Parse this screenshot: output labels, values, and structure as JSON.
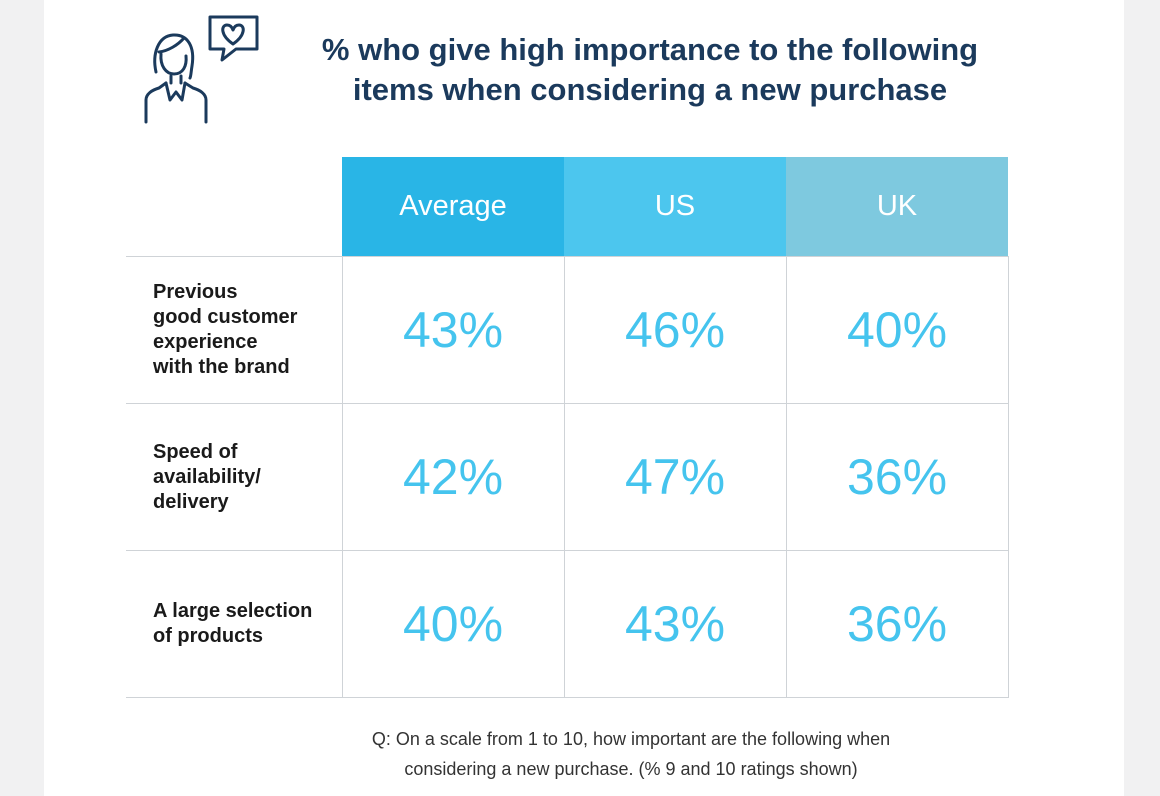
{
  "title_lines": [
    "% who give high importance to the following",
    "items when considering a new purchase"
  ],
  "icon": "person-with-heart-speech-bubble-icon",
  "colors": {
    "title": "#1b3a5c",
    "average_header": "#29b5e6",
    "us_header": "#4cc6ee",
    "uk_header": "#7ec9df",
    "value_text": "#45c4ee",
    "grid_line": "#cfd3d7"
  },
  "chart_data": {
    "type": "table",
    "columns": [
      "Average",
      "US",
      "UK"
    ],
    "rows": [
      {
        "label_lines": [
          "Previous",
          "good customer",
          "experience",
          "with the brand"
        ],
        "values": [
          "43%",
          "46%",
          "40%"
        ]
      },
      {
        "label_lines": [
          "Speed of",
          "availability/",
          "delivery"
        ],
        "values": [
          "42%",
          "47%",
          "36%"
        ]
      },
      {
        "label_lines": [
          "A large selection",
          "of products"
        ],
        "values": [
          "40%",
          "43%",
          "36%"
        ]
      }
    ],
    "unit": "%"
  },
  "footnote_lines": [
    "Q: On a scale from 1 to 10, how important are the following when",
    "considering a new purchase. (% 9 and 10 ratings shown)"
  ]
}
